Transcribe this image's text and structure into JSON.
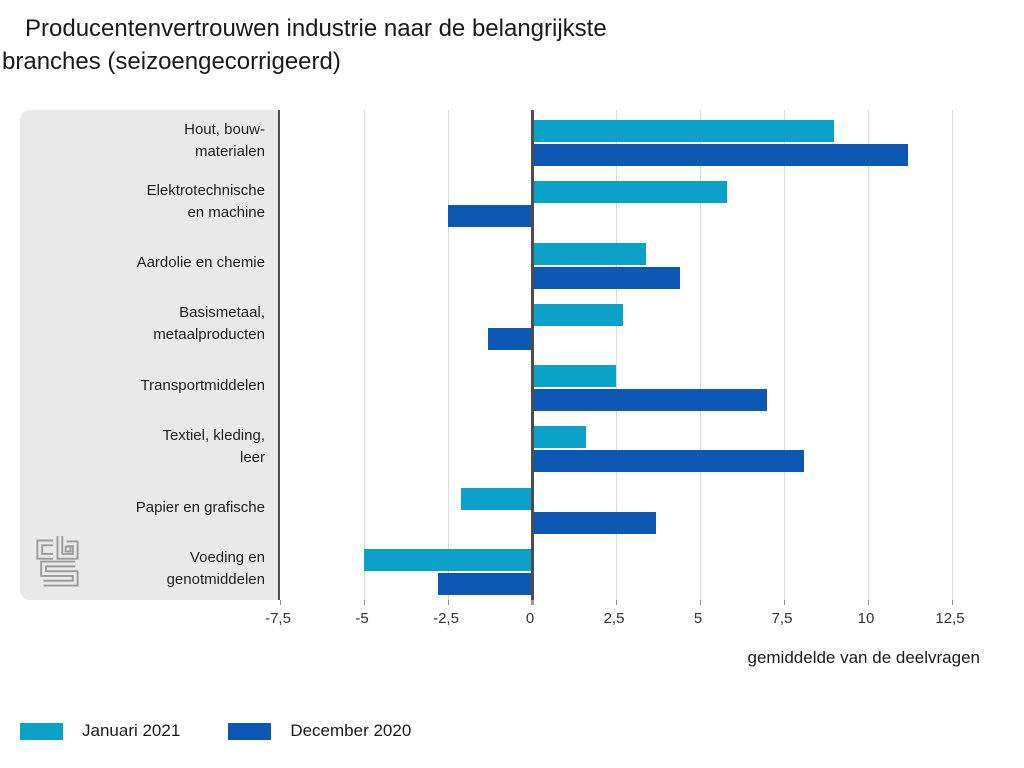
{
  "title": {
    "line1": "Producentenvertrouwen industrie naar de belangrijkste",
    "line2": "branches (seizoengecorrigeerd)"
  },
  "chart_data": {
    "type": "bar",
    "orientation": "horizontal",
    "title": "Producentenvertrouwen industrie naar de belangrijkste branches (seizoengecorrigeerd)",
    "xlabel": "gemiddelde van de deelvragen",
    "xlim": [
      -7.5,
      12.5
    ],
    "grid": true,
    "legend_position": "bottom",
    "categories": [
      {
        "label": "Hout, bouwmaterialen",
        "lines": [
          "Hout, bouw-",
          "materialen"
        ]
      },
      {
        "label": "Elektrotechnische en machine",
        "lines": [
          "Elektrotechnische",
          "en machine"
        ]
      },
      {
        "label": "Aardolie en chemie",
        "lines": [
          "Aardolie en chemie"
        ]
      },
      {
        "label": "Basismetaal, metaalproducten",
        "lines": [
          "Basismetaal,",
          "metaalproducten"
        ]
      },
      {
        "label": "Transportmiddelen",
        "lines": [
          "Transportmiddelen"
        ]
      },
      {
        "label": "Textiel, kleding, leer",
        "lines": [
          "Textiel, kleding,",
          "leer"
        ]
      },
      {
        "label": "Papier en grafische",
        "lines": [
          "Papier en grafische"
        ]
      },
      {
        "label": "Voeding en genotmiddelen",
        "lines": [
          "Voeding en",
          "genotmiddelen"
        ]
      }
    ],
    "series": [
      {
        "name": "Januari 2021",
        "color": "#0ba1c9",
        "values": [
          9.0,
          5.8,
          3.4,
          2.7,
          2.5,
          1.6,
          -2.1,
          -5.0
        ]
      },
      {
        "name": "December 2020",
        "color": "#0d57b5",
        "values": [
          11.2,
          -2.5,
          4.4,
          -1.3,
          7.0,
          8.1,
          3.7,
          -2.8
        ]
      }
    ],
    "ticks": [
      {
        "v": -7.5,
        "label": "-7,5"
      },
      {
        "v": -5,
        "label": "-5"
      },
      {
        "v": -2.5,
        "label": "-2,5"
      },
      {
        "v": 0,
        "label": "0"
      },
      {
        "v": 2.5,
        "label": "2,5"
      },
      {
        "v": 5,
        "label": "5"
      },
      {
        "v": 7.5,
        "label": "7,5"
      },
      {
        "v": 10,
        "label": "10"
      },
      {
        "v": 12.5,
        "label": "12,5"
      }
    ]
  },
  "colors": {
    "panel_bg": "#e9e9e9",
    "gridline": "#d9d9d9",
    "zero_line": "#4d4d4d",
    "tick_stub": "#9a9a9a",
    "logo": "#9b9b9b"
  },
  "logo_name": "CBS"
}
